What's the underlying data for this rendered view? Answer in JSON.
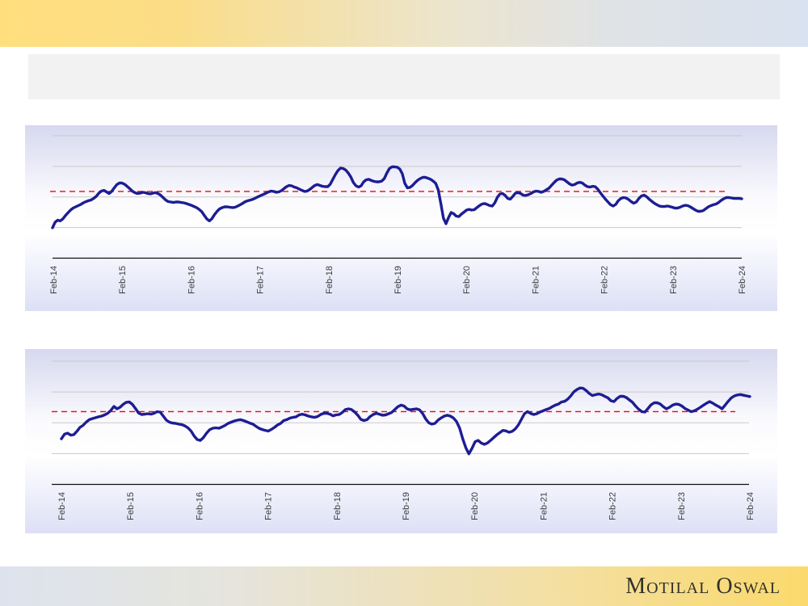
{
  "header_bar": {
    "title": "",
    "background": "#f2f2f2"
  },
  "brand": {
    "logo_text": "Motilal Oswal",
    "top_band": {
      "left_color": "#ffdf7d",
      "right_color": "#d9e2f0"
    },
    "bottom_band": {
      "left_color": "#dde3ee",
      "right_color": "#fbd96c"
    }
  },
  "chart_data": [
    {
      "type": "line",
      "title": "",
      "x_tick_labels": [
        "Feb-14",
        "Feb-15",
        "Feb-16",
        "Feb-17",
        "Feb-18",
        "Feb-19",
        "Feb-20",
        "Feb-21",
        "Feb-22",
        "Feb-23",
        "Feb-24"
      ],
      "x_range": [
        "Feb-14",
        "Feb-24"
      ],
      "y_axis_labels": [],
      "ylim": [
        0,
        100
      ],
      "y_units": "normalized (no visible y-axis labels; 0 = x-axis, 100 = top gridline)",
      "grid_on": true,
      "gridlines": [
        25,
        50,
        75,
        100
      ],
      "legend": "none",
      "colors": {
        "gridline": "#c9c9c9",
        "axis": "#111111"
      },
      "reference_line": {
        "style": "dashed",
        "color": "#ff0000",
        "value": 54.5
      },
      "series": [
        {
          "name": "",
          "color": "#1d1d93",
          "values": [
            24.8,
            29.4,
            31,
            30.4,
            32,
            34.7,
            37,
            39.3,
            40.9,
            41.9,
            42.9,
            43.9,
            45.2,
            46.2,
            46.9,
            47.5,
            48.8,
            50.5,
            53.1,
            54.8,
            55.4,
            54.1,
            52.8,
            54.5,
            57.4,
            60.1,
            61.4,
            61.4,
            60.4,
            58.7,
            56.8,
            54.8,
            53.5,
            52.8,
            53.1,
            53.8,
            53.5,
            52.8,
            52.5,
            53.1,
            53.5,
            52.8,
            51.5,
            49.5,
            47.5,
            46.2,
            45.9,
            45.5,
            45.9,
            45.9,
            45.5,
            45.2,
            44.6,
            43.9,
            43.2,
            42.2,
            41.3,
            39.9,
            38,
            35,
            32,
            30.4,
            32.3,
            35.6,
            38.3,
            40.3,
            41.3,
            41.9,
            41.9,
            41.6,
            41.3,
            41.6,
            42.6,
            43.6,
            44.9,
            46.2,
            46.9,
            47.5,
            48.2,
            49.2,
            50.2,
            51.2,
            52.1,
            53.1,
            54.1,
            54.8,
            54.5,
            53.8,
            54.1,
            55.1,
            56.8,
            58.4,
            59.4,
            59.1,
            58.1,
            57.4,
            56.4,
            55.4,
            54.5,
            54.8,
            56.1,
            57.8,
            59.4,
            60.1,
            59.4,
            58.7,
            58.4,
            58.4,
            60.4,
            64.4,
            68.3,
            71.6,
            73.6,
            73.3,
            72,
            69.6,
            66.3,
            61.7,
            59.1,
            58.1,
            59.1,
            62.4,
            64,
            64.4,
            63.4,
            62.7,
            62.4,
            62.4,
            63,
            65,
            69.6,
            73.3,
            74.6,
            74.6,
            74.3,
            72.9,
            69,
            61.1,
            57.4,
            57.8,
            59.4,
            61.7,
            63.7,
            65,
            66,
            66,
            65.3,
            64.4,
            63,
            61.1,
            55.8,
            44.6,
            32.7,
            28.1,
            33.3,
            37.3,
            36.3,
            34.3,
            34,
            36,
            37.6,
            39.3,
            39.9,
            39.3,
            39.6,
            41.3,
            42.9,
            44.2,
            44.6,
            43.9,
            42.9,
            42.6,
            45.2,
            49.8,
            52.5,
            52.8,
            51.2,
            48.8,
            48.2,
            50.5,
            53.1,
            53.5,
            52.8,
            51.5,
            51.2,
            51.8,
            52.8,
            54.1,
            54.8,
            54.5,
            53.8,
            54.5,
            55.8,
            57.1,
            59.4,
            61.7,
            63.7,
            64.7,
            64.7,
            64,
            62.4,
            60.7,
            59.7,
            60.1,
            61.4,
            62,
            61.4,
            59.7,
            58.4,
            58.1,
            58.7,
            58.4,
            56.4,
            53.5,
            50.8,
            48.2,
            45.9,
            43.6,
            42.6,
            43.9,
            46.9,
            48.8,
            49.5,
            49.2,
            47.9,
            46.2,
            44.9,
            45.9,
            48.8,
            50.8,
            51.5,
            50.2,
            48.2,
            46.5,
            44.9,
            43.6,
            42.6,
            42.2,
            42.2,
            42.6,
            42.2,
            41.6,
            40.9,
            40.9,
            41.6,
            42.6,
            43.2,
            42.9,
            41.9,
            40.6,
            39.3,
            38.3,
            38.3,
            38.9,
            40.3,
            41.9,
            42.9,
            43.6,
            44.2,
            45.5,
            47.2,
            48.5,
            49.5,
            49.5,
            49.2,
            48.8,
            48.8,
            48.8,
            48.5
          ]
        }
      ]
    },
    {
      "type": "line",
      "title": "",
      "x_tick_labels": [
        "Feb-14",
        "Feb-15",
        "Feb-16",
        "Feb-17",
        "Feb-18",
        "Feb-19",
        "Feb-20",
        "Feb-21",
        "Feb-22",
        "Feb-23",
        "Feb-24"
      ],
      "x_range": [
        "Feb-14",
        "Feb-24"
      ],
      "y_axis_labels": [],
      "ylim": [
        0,
        100
      ],
      "y_units": "normalized (no visible y-axis labels; 0 = x-axis, 100 = top gridline)",
      "grid_on": true,
      "gridlines": [
        25,
        50,
        75,
        100
      ],
      "legend": "none",
      "colors": {
        "gridline": "#c9c9c9",
        "axis": "#111111"
      },
      "reference_line": {
        "style": "dashed",
        "color": "#ff0000",
        "value": 59.1
      },
      "series": [
        {
          "name": "",
          "color": "#1d1d93",
          "values": [
            37,
            40.7,
            41.6,
            40,
            40.3,
            43,
            46.2,
            47.9,
            50.5,
            52.5,
            53.4,
            54.1,
            54.8,
            55.4,
            56.4,
            57.7,
            60,
            63.3,
            61.3,
            62.6,
            64.9,
            66.6,
            66.9,
            64.9,
            61.6,
            58,
            56.7,
            57,
            57.4,
            57,
            57.7,
            59,
            58.7,
            55.4,
            52.1,
            50.5,
            49.8,
            49.5,
            48.9,
            48.5,
            47.5,
            45.9,
            43.3,
            39.3,
            36.4,
            35.7,
            38,
            41.6,
            44.3,
            45.6,
            45.9,
            45.6,
            46.6,
            47.9,
            49.5,
            50.5,
            51.5,
            52.1,
            52.5,
            51.8,
            50.8,
            49.8,
            48.9,
            47.2,
            45.6,
            44.6,
            43.9,
            43.3,
            44.6,
            46.2,
            48.2,
            49.5,
            51.8,
            52.5,
            53.8,
            54.4,
            54.8,
            56.4,
            57,
            56.4,
            55.4,
            54.8,
            54.4,
            55.1,
            56.7,
            57.7,
            57.7,
            57,
            55.7,
            56.4,
            56.7,
            58.4,
            60.7,
            61.3,
            60.7,
            58.7,
            56.1,
            52.8,
            51.8,
            52.5,
            55.1,
            56.7,
            57.7,
            57,
            56.1,
            56.4,
            57.4,
            58.4,
            60.7,
            63,
            64.3,
            63.6,
            61.3,
            60.5,
            60.9,
            61.3,
            60.5,
            57.6,
            53.2,
            50,
            48.9,
            49.5,
            52.1,
            53.9,
            55.4,
            56.1,
            55.4,
            53.9,
            51,
            45.6,
            37,
            29.8,
            24.8,
            29.2,
            34.6,
            35.7,
            33.6,
            32.5,
            33.6,
            35.7,
            37.9,
            40.1,
            42,
            43.8,
            43.4,
            42.3,
            43,
            44.9,
            48.2,
            52.8,
            57.4,
            59.1,
            57.6,
            56.7,
            57.4,
            58.7,
            59.7,
            60.7,
            61.6,
            63,
            64.3,
            65.2,
            66.9,
            67.4,
            69.2,
            71.8,
            75.1,
            77,
            78.2,
            78,
            76.1,
            73.8,
            72.1,
            72.8,
            73.4,
            72.8,
            71.5,
            70.2,
            67.9,
            67.2,
            69.8,
            71.5,
            71.5,
            70.5,
            68.5,
            66.6,
            63.6,
            61,
            59,
            58.7,
            61.6,
            64.6,
            66.2,
            66.2,
            65.2,
            63,
            61.3,
            62.6,
            64.3,
            65.2,
            64.9,
            63.6,
            61.6,
            60.3,
            59,
            59.7,
            61,
            62.6,
            64.3,
            65.9,
            67.2,
            65.9,
            64.3,
            63,
            61.3,
            64.3,
            67.5,
            70.2,
            71.8,
            72.6,
            72.9,
            72.3,
            71.8,
            71.3
          ]
        }
      ]
    }
  ]
}
